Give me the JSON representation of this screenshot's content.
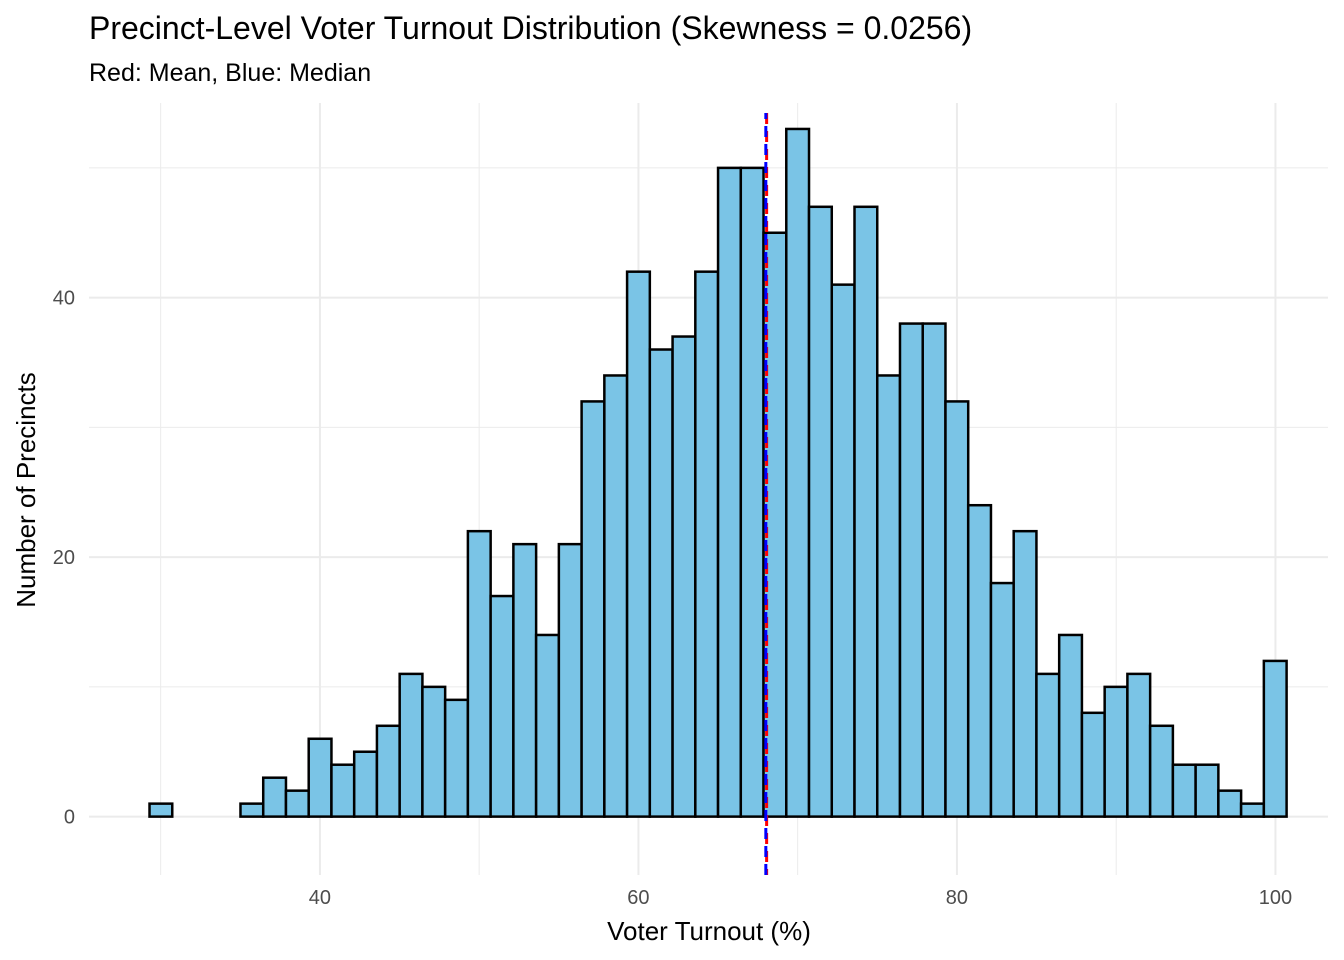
{
  "chart_data": {
    "type": "bar",
    "title": "Precinct-Level Voter Turnout Distribution (Skewness = 0.0256)",
    "subtitle": "Red: Mean, Blue: Median",
    "xlabel": "Voter Turnout (%)",
    "ylabel": "Number of Precincts",
    "xlim": [
      25.5,
      103.3
    ],
    "ylim": [
      -4.5,
      55
    ],
    "x_ticks": [
      40,
      60,
      80,
      100
    ],
    "y_ticks": [
      0,
      20,
      40
    ],
    "grid": true,
    "bin_width": 1.428,
    "bin_start": 29.3,
    "bin_counts": [
      1,
      0,
      0,
      0,
      1,
      3,
      2,
      6,
      4,
      5,
      7,
      11,
      10,
      9,
      22,
      17,
      21,
      14,
      21,
      32,
      34,
      42,
      36,
      37,
      42,
      50,
      50,
      45,
      53,
      47,
      41,
      47,
      34,
      38,
      38,
      32,
      24,
      18,
      22,
      11,
      14,
      8,
      10,
      11,
      7,
      4,
      4,
      2,
      1,
      12
    ],
    "mean": 68.05,
    "median": 68.0,
    "colors": {
      "bar_fill": "#7ac4e6",
      "bar_stroke": "#000000",
      "mean_line": "#ff0000",
      "median_line": "#0000ff",
      "grid": "#ebebeb"
    }
  }
}
